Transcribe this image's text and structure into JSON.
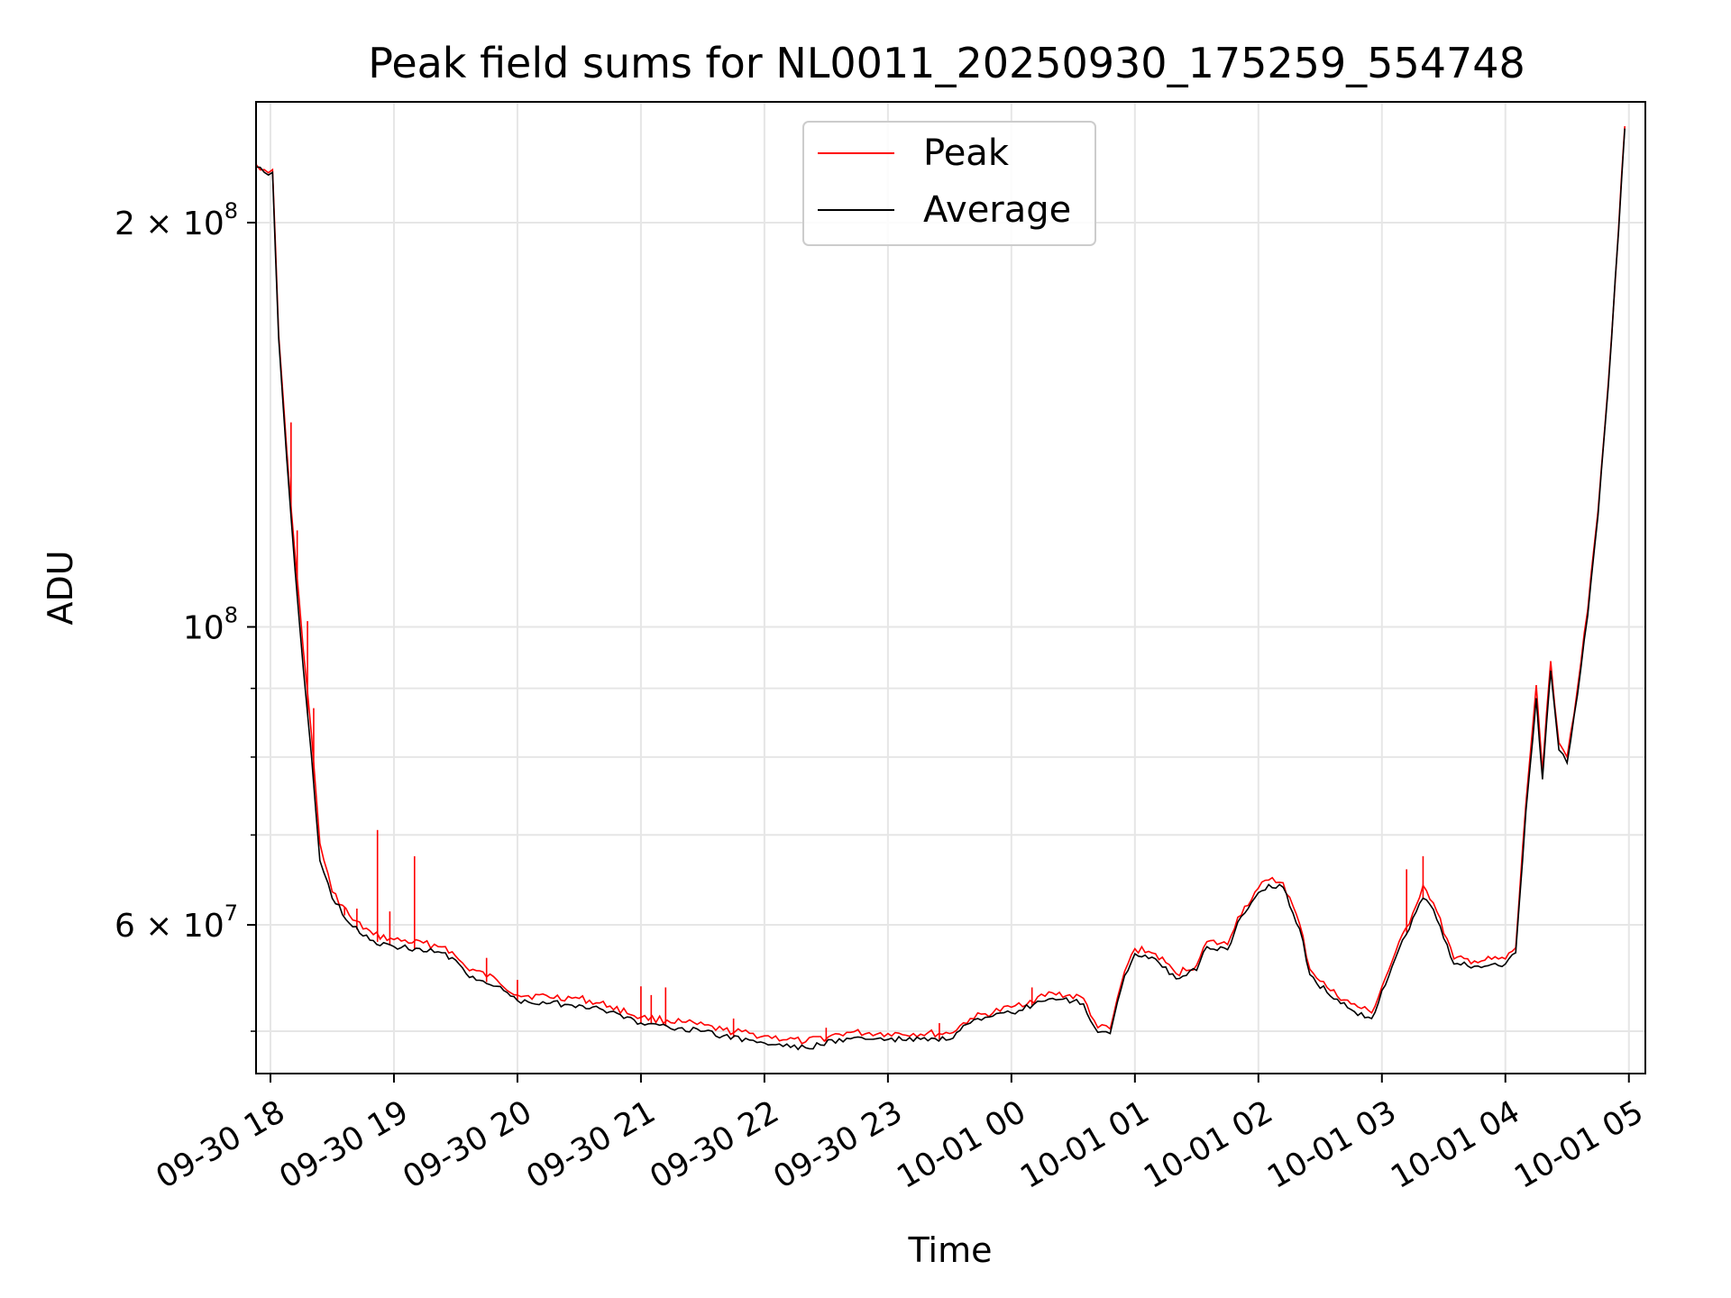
{
  "chart_data": {
    "type": "line",
    "title": "Peak field sums for NL0011_20250930_175259_554748",
    "xlabel": "Time",
    "ylabel": "ADU",
    "x_scale": "time",
    "y_scale": "log",
    "xlim": [
      "2025-09-30 17:53",
      "2025-10-01 05:08"
    ],
    "ylim": [
      46500000,
      246000000
    ],
    "grid": true,
    "legend_position": "upper-center",
    "x_ticks": [
      {
        "t": "2025-09-30 18:00",
        "label": "09-30 18"
      },
      {
        "t": "2025-09-30 19:00",
        "label": "09-30 19"
      },
      {
        "t": "2025-09-30 20:00",
        "label": "09-30 20"
      },
      {
        "t": "2025-09-30 21:00",
        "label": "09-30 21"
      },
      {
        "t": "2025-09-30 22:00",
        "label": "09-30 22"
      },
      {
        "t": "2025-09-30 23:00",
        "label": "09-30 23"
      },
      {
        "t": "2025-10-01 00:00",
        "label": "10-01 00"
      },
      {
        "t": "2025-10-01 01:00",
        "label": "10-01 01"
      },
      {
        "t": "2025-10-01 02:00",
        "label": "10-01 02"
      },
      {
        "t": "2025-10-01 03:00",
        "label": "10-01 03"
      },
      {
        "t": "2025-10-01 04:00",
        "label": "10-01 04"
      },
      {
        "t": "2025-10-01 05:00",
        "label": "10-01 05"
      }
    ],
    "y_major_ticks": [
      {
        "value": 200000000,
        "mantissa": "2 × 10",
        "exp": "8"
      },
      {
        "value": 100000000,
        "mantissa": "10",
        "exp": "8"
      },
      {
        "value": 60000000,
        "mantissa": "6 × 10",
        "exp": "7"
      }
    ],
    "y_minor_ticks": [
      50000000,
      70000000,
      80000000,
      90000000
    ],
    "series": [
      {
        "name": "Peak",
        "color": "#ff0000",
        "points": [
          [
            "2025-09-30 17:53",
            221000000
          ],
          [
            "2025-09-30 17:57",
            219000000
          ],
          [
            "2025-09-30 18:01",
            219000000
          ],
          [
            "2025-09-30 18:04",
            165000000
          ],
          [
            "2025-09-30 18:08",
            135000000
          ],
          [
            "2025-09-30 18:12",
            113000000
          ],
          [
            "2025-09-30 18:16",
            96000000
          ],
          [
            "2025-09-30 18:20",
            83000000
          ],
          [
            "2025-09-30 18:24",
            69000000
          ],
          [
            "2025-09-30 18:30",
            63500000
          ],
          [
            "2025-09-30 18:40",
            60500000
          ],
          [
            "2025-09-30 18:50",
            59000000
          ],
          [
            "2025-09-30 19:00",
            58500000
          ],
          [
            "2025-09-30 19:25",
            57800000
          ],
          [
            "2025-09-30 19:35",
            55800000
          ],
          [
            "2025-09-30 19:50",
            54600000
          ],
          [
            "2025-09-30 20:00",
            53200000
          ],
          [
            "2025-09-30 20:30",
            52900000
          ],
          [
            "2025-09-30 20:45",
            52200000
          ],
          [
            "2025-09-30 21:00",
            51200000
          ],
          [
            "2025-09-30 21:20",
            50800000
          ],
          [
            "2025-09-30 21:40",
            50100000
          ],
          [
            "2025-09-30 22:00",
            49600000
          ],
          [
            "2025-09-30 22:20",
            49100000
          ],
          [
            "2025-09-30 22:40",
            49900000
          ],
          [
            "2025-09-30 23:00",
            49800000
          ],
          [
            "2025-09-30 23:30",
            49800000
          ],
          [
            "2025-09-30 23:40",
            51100000
          ],
          [
            "2025-10-01 00:00",
            52100000
          ],
          [
            "2025-10-01 00:20",
            53400000
          ],
          [
            "2025-10-01 00:35",
            52900000
          ],
          [
            "2025-10-01 00:42",
            50300000
          ],
          [
            "2025-10-01 00:48",
            50200000
          ],
          [
            "2025-10-01 00:55",
            55400000
          ],
          [
            "2025-10-01 01:00",
            57600000
          ],
          [
            "2025-10-01 01:10",
            57100000
          ],
          [
            "2025-10-01 01:20",
            55200000
          ],
          [
            "2025-10-01 01:30",
            56000000
          ],
          [
            "2025-10-01 01:35",
            58300000
          ],
          [
            "2025-10-01 01:45",
            58000000
          ],
          [
            "2025-10-01 01:50",
            60800000
          ],
          [
            "2025-10-01 02:00",
            63900000
          ],
          [
            "2025-10-01 02:05",
            64800000
          ],
          [
            "2025-10-01 02:12",
            64500000
          ],
          [
            "2025-10-01 02:20",
            60100000
          ],
          [
            "2025-10-01 02:25",
            55600000
          ],
          [
            "2025-10-01 02:35",
            53600000
          ],
          [
            "2025-10-01 02:45",
            52400000
          ],
          [
            "2025-10-01 02:55",
            51600000
          ],
          [
            "2025-10-01 03:05",
            56400000
          ],
          [
            "2025-10-01 03:15",
            61200000
          ],
          [
            "2025-10-01 03:20",
            64200000
          ],
          [
            "2025-10-01 03:25",
            62300000
          ],
          [
            "2025-10-01 03:35",
            56600000
          ],
          [
            "2025-10-01 03:45",
            56400000
          ],
          [
            "2025-10-01 04:00",
            56600000
          ],
          [
            "2025-10-01 04:05",
            57700000
          ],
          [
            "2025-10-01 04:10",
            74000000
          ],
          [
            "2025-10-01 04:15",
            90500000
          ],
          [
            "2025-10-01 04:18",
            78000000
          ],
          [
            "2025-10-01 04:22",
            94300000
          ],
          [
            "2025-10-01 04:26",
            82000000
          ],
          [
            "2025-10-01 04:30",
            80000000
          ],
          [
            "2025-10-01 04:35",
            90000000
          ],
          [
            "2025-10-01 04:40",
            103000000
          ],
          [
            "2025-10-01 04:45",
            122000000
          ],
          [
            "2025-10-01 04:50",
            152000000
          ],
          [
            "2025-10-01 04:55",
            198000000
          ],
          [
            "2025-10-01 04:58",
            236000000
          ]
        ]
      },
      {
        "name": "Average",
        "color": "#000000",
        "points": [
          [
            "2025-09-30 17:53",
            220000000
          ],
          [
            "2025-09-30 17:57",
            218000000
          ],
          [
            "2025-09-30 18:01",
            218000000
          ],
          [
            "2025-09-30 18:04",
            164000000
          ],
          [
            "2025-09-30 18:08",
            133000000
          ],
          [
            "2025-09-30 18:12",
            110000000
          ],
          [
            "2025-09-30 18:16",
            93000000
          ],
          [
            "2025-09-30 18:20",
            80000000
          ],
          [
            "2025-09-30 18:24",
            67000000
          ],
          [
            "2025-09-30 18:30",
            62800000
          ],
          [
            "2025-09-30 18:40",
            59800000
          ],
          [
            "2025-09-30 18:50",
            58400000
          ],
          [
            "2025-09-30 19:00",
            57800000
          ],
          [
            "2025-09-30 19:25",
            57200000
          ],
          [
            "2025-09-30 19:35",
            55200000
          ],
          [
            "2025-09-30 19:50",
            54000000
          ],
          [
            "2025-09-30 20:00",
            52700000
          ],
          [
            "2025-09-30 20:30",
            52300000
          ],
          [
            "2025-09-30 20:45",
            51700000
          ],
          [
            "2025-09-30 21:00",
            50700000
          ],
          [
            "2025-09-30 21:20",
            50300000
          ],
          [
            "2025-09-30 21:40",
            49600000
          ],
          [
            "2025-09-30 22:00",
            49000000
          ],
          [
            "2025-09-30 22:20",
            48600000
          ],
          [
            "2025-09-30 22:40",
            49400000
          ],
          [
            "2025-09-30 23:00",
            49300000
          ],
          [
            "2025-09-30 23:30",
            49300000
          ],
          [
            "2025-09-30 23:40",
            50700000
          ],
          [
            "2025-10-01 00:00",
            51600000
          ],
          [
            "2025-10-01 00:20",
            52900000
          ],
          [
            "2025-10-01 00:35",
            52400000
          ],
          [
            "2025-10-01 00:42",
            49900000
          ],
          [
            "2025-10-01 00:48",
            49800000
          ],
          [
            "2025-10-01 00:55",
            55000000
          ],
          [
            "2025-10-01 01:00",
            57100000
          ],
          [
            "2025-10-01 01:10",
            56600000
          ],
          [
            "2025-10-01 01:20",
            54700000
          ],
          [
            "2025-10-01 01:30",
            55500000
          ],
          [
            "2025-10-01 01:35",
            57800000
          ],
          [
            "2025-10-01 01:45",
            57500000
          ],
          [
            "2025-10-01 01:50",
            60300000
          ],
          [
            "2025-10-01 02:00",
            63400000
          ],
          [
            "2025-10-01 02:05",
            64300000
          ],
          [
            "2025-10-01 02:12",
            64000000
          ],
          [
            "2025-10-01 02:20",
            59600000
          ],
          [
            "2025-10-01 02:25",
            55100000
          ],
          [
            "2025-10-01 02:35",
            53100000
          ],
          [
            "2025-10-01 02:45",
            51900000
          ],
          [
            "2025-10-01 02:55",
            51100000
          ],
          [
            "2025-10-01 03:05",
            55900000
          ],
          [
            "2025-10-01 03:15",
            60700000
          ],
          [
            "2025-10-01 03:20",
            62800000
          ],
          [
            "2025-10-01 03:25",
            61600000
          ],
          [
            "2025-10-01 03:35",
            56100000
          ],
          [
            "2025-10-01 03:45",
            55900000
          ],
          [
            "2025-10-01 04:00",
            56100000
          ],
          [
            "2025-10-01 04:05",
            57200000
          ],
          [
            "2025-10-01 04:10",
            73000000
          ],
          [
            "2025-10-01 04:15",
            88500000
          ],
          [
            "2025-10-01 04:18",
            77000000
          ],
          [
            "2025-10-01 04:22",
            92800000
          ],
          [
            "2025-10-01 04:26",
            81000000
          ],
          [
            "2025-10-01 04:30",
            79200000
          ],
          [
            "2025-10-01 04:35",
            89000000
          ],
          [
            "2025-10-01 04:40",
            102000000
          ],
          [
            "2025-10-01 04:45",
            121000000
          ],
          [
            "2025-10-01 04:50",
            151000000
          ],
          [
            "2025-10-01 04:55",
            197000000
          ],
          [
            "2025-10-01 04:58",
            235000000
          ]
        ]
      }
    ],
    "annotations": [],
    "spikes": [
      [
        "2025-09-30 18:10",
        142000000
      ],
      [
        "2025-09-30 18:13",
        118000000
      ],
      [
        "2025-09-30 18:18",
        101000000
      ],
      [
        "2025-09-30 18:21",
        87000000
      ],
      [
        "2025-09-30 18:36",
        61900000
      ],
      [
        "2025-09-30 18:42",
        61700000
      ],
      [
        "2025-09-30 18:52",
        70600000
      ],
      [
        "2025-09-30 18:58",
        61400000
      ],
      [
        "2025-09-30 19:10",
        67500000
      ],
      [
        "2025-09-30 19:45",
        56700000
      ],
      [
        "2025-09-30 20:00",
        54600000
      ],
      [
        "2025-09-30 21:00",
        54000000
      ],
      [
        "2025-09-30 21:05",
        53200000
      ],
      [
        "2025-09-30 21:12",
        53900000
      ],
      [
        "2025-09-30 21:45",
        51100000
      ],
      [
        "2025-09-30 22:30",
        50300000
      ],
      [
        "2025-09-30 23:25",
        50700000
      ],
      [
        "2025-10-01 00:10",
        53900000
      ],
      [
        "2025-10-01 03:12",
        66000000
      ],
      [
        "2025-10-01 03:20",
        67500000
      ]
    ]
  }
}
